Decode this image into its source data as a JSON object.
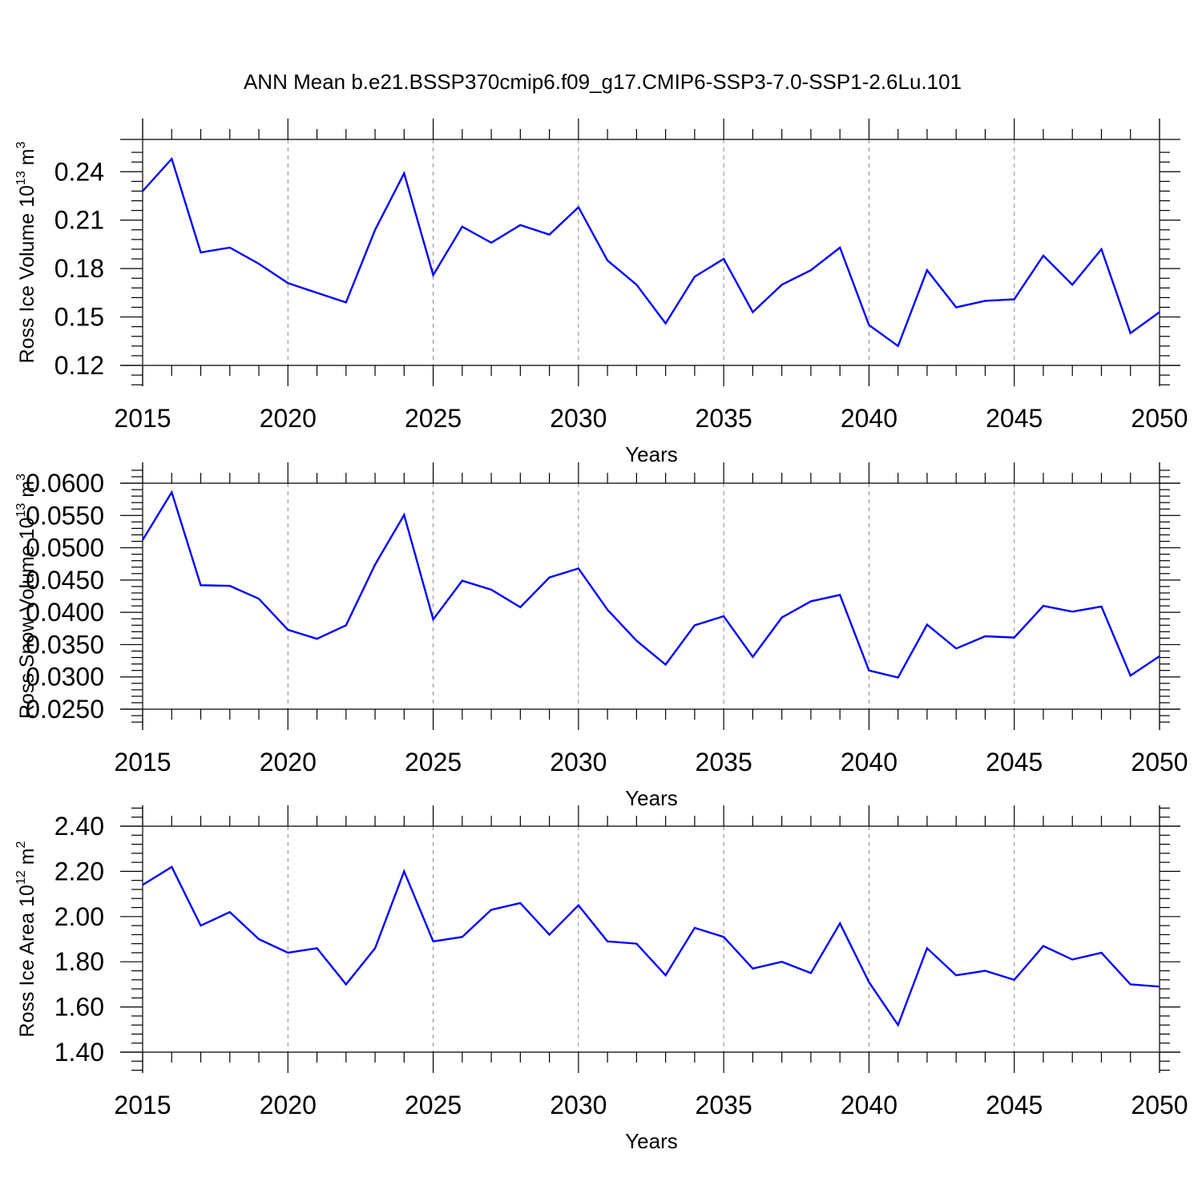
{
  "title": "ANN Mean b.e21.BSSP370cmip6.f09_g17.CMIP6-SSP3-7.0-SSP1-2.6Lu.101",
  "chart_data": [
    {
      "type": "line",
      "title": "",
      "xlabel": "Years",
      "ylabel_main": "Ross Ice Volume 10",
      "ylabel_exp": "13",
      "ylabel_unit": " m",
      "ylabel_unit_exp": "3",
      "xlim": [
        2015,
        2050
      ],
      "ylim": [
        0.12,
        0.26
      ],
      "yticks": [
        0.12,
        0.15,
        0.18,
        0.21,
        0.24
      ],
      "ytick_labels": [
        "0.12",
        "0.15",
        "0.18",
        "0.21",
        "0.24"
      ],
      "xticks": [
        2015,
        2020,
        2025,
        2030,
        2035,
        2040,
        2045,
        2050
      ],
      "xtick_labels": [
        "2015",
        "2020",
        "2025",
        "2030",
        "2035",
        "2040",
        "2045",
        "2050"
      ],
      "x": [
        2015,
        2016,
        2017,
        2018,
        2019,
        2020,
        2021,
        2022,
        2023,
        2024,
        2025,
        2026,
        2027,
        2028,
        2029,
        2030,
        2031,
        2032,
        2033,
        2034,
        2035,
        2036,
        2037,
        2038,
        2039,
        2040,
        2041,
        2042,
        2043,
        2044,
        2045,
        2046,
        2047,
        2048,
        2049,
        2050
      ],
      "values": [
        0.228,
        0.248,
        0.19,
        0.193,
        0.183,
        0.171,
        0.165,
        0.159,
        0.204,
        0.239,
        0.176,
        0.206,
        0.196,
        0.207,
        0.201,
        0.218,
        0.185,
        0.17,
        0.146,
        0.175,
        0.186,
        0.153,
        0.17,
        0.179,
        0.193,
        0.145,
        0.132,
        0.179,
        0.156,
        0.16,
        0.161,
        0.188,
        0.17,
        0.192,
        0.14,
        0.153
      ]
    },
    {
      "type": "line",
      "title": "",
      "xlabel": "Years",
      "ylabel_main": "Ross Snow Volume 10",
      "ylabel_exp": "13",
      "ylabel_unit": " m",
      "ylabel_unit_exp": "3",
      "xlim": [
        2015,
        2050
      ],
      "ylim": [
        0.025,
        0.06
      ],
      "yticks": [
        0.025,
        0.03,
        0.035,
        0.04,
        0.045,
        0.05,
        0.055,
        0.06
      ],
      "ytick_labels": [
        "0.0250",
        "0.0300",
        "0.0350",
        "0.0400",
        "0.0450",
        "0.0500",
        "0.0550",
        "0.0600"
      ],
      "xticks": [
        2015,
        2020,
        2025,
        2030,
        2035,
        2040,
        2045,
        2050
      ],
      "xtick_labels": [
        "2015",
        "2020",
        "2025",
        "2030",
        "2035",
        "2040",
        "2045",
        "2050"
      ],
      "x": [
        2015,
        2016,
        2017,
        2018,
        2019,
        2020,
        2021,
        2022,
        2023,
        2024,
        2025,
        2026,
        2027,
        2028,
        2029,
        2030,
        2031,
        2032,
        2033,
        2034,
        2035,
        2036,
        2037,
        2038,
        2039,
        2040,
        2041,
        2042,
        2043,
        2044,
        2045,
        2046,
        2047,
        2048,
        2049,
        2050
      ],
      "values": [
        0.0512,
        0.0586,
        0.0442,
        0.0441,
        0.0421,
        0.0373,
        0.0359,
        0.038,
        0.0474,
        0.0551,
        0.0389,
        0.0449,
        0.0435,
        0.0408,
        0.0454,
        0.0468,
        0.0404,
        0.0356,
        0.0319,
        0.038,
        0.0394,
        0.0331,
        0.0392,
        0.0417,
        0.0427,
        0.031,
        0.0299,
        0.0381,
        0.0344,
        0.0363,
        0.0361,
        0.041,
        0.0401,
        0.0409,
        0.0302,
        0.0332
      ]
    },
    {
      "type": "line",
      "title": "",
      "xlabel": "Years",
      "ylabel_main": "Ross Ice Area 10",
      "ylabel_exp": "12",
      "ylabel_unit": " m",
      "ylabel_unit_exp": "2",
      "xlim": [
        2015,
        2050
      ],
      "ylim": [
        1.4,
        2.4
      ],
      "yticks": [
        1.4,
        1.6,
        1.8,
        2.0,
        2.2,
        2.4
      ],
      "ytick_labels": [
        "1.40",
        "1.60",
        "1.80",
        "2.00",
        "2.20",
        "2.40"
      ],
      "xticks": [
        2015,
        2020,
        2025,
        2030,
        2035,
        2040,
        2045,
        2050
      ],
      "xtick_labels": [
        "2015",
        "2020",
        "2025",
        "2030",
        "2035",
        "2040",
        "2045",
        "2050"
      ],
      "x": [
        2015,
        2016,
        2017,
        2018,
        2019,
        2020,
        2021,
        2022,
        2023,
        2024,
        2025,
        2026,
        2027,
        2028,
        2029,
        2030,
        2031,
        2032,
        2033,
        2034,
        2035,
        2036,
        2037,
        2038,
        2039,
        2040,
        2041,
        2042,
        2043,
        2044,
        2045,
        2046,
        2047,
        2048,
        2049,
        2050
      ],
      "values": [
        2.14,
        2.22,
        1.96,
        2.02,
        1.9,
        1.84,
        1.86,
        1.7,
        1.86,
        2.2,
        1.89,
        1.91,
        2.03,
        2.06,
        1.92,
        2.05,
        1.89,
        1.88,
        1.74,
        1.95,
        1.91,
        1.77,
        1.8,
        1.75,
        1.97,
        1.71,
        1.52,
        1.86,
        1.74,
        1.76,
        1.72,
        1.87,
        1.81,
        1.84,
        1.7,
        1.69
      ]
    }
  ]
}
